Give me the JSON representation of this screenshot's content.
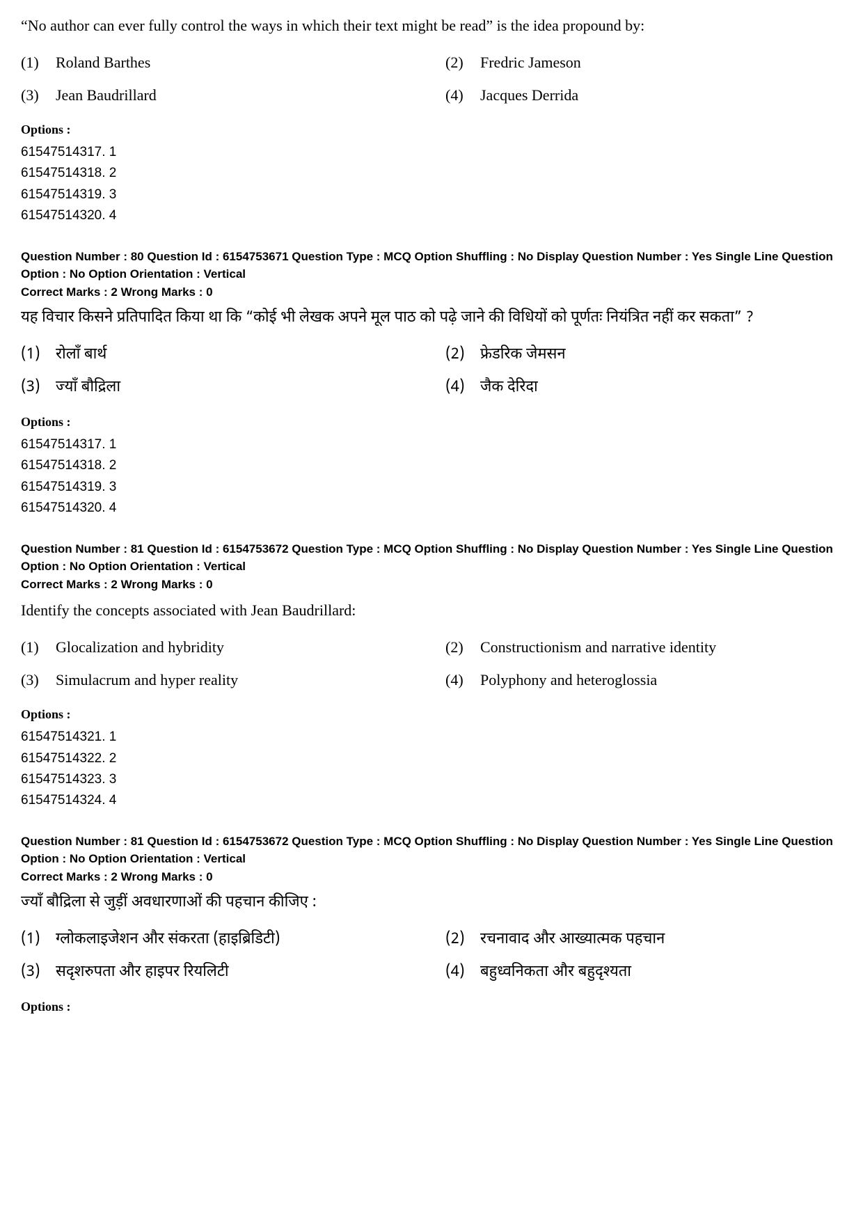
{
  "q79_en": {
    "text": "“No author can ever fully control the ways in which their text might be read” is the idea propound by:",
    "choices": [
      {
        "n": "(1)",
        "t": "Roland Barthes"
      },
      {
        "n": "(2)",
        "t": "Fredric Jameson"
      },
      {
        "n": "(3)",
        "t": "Jean Baudrillard"
      },
      {
        "n": "(4)",
        "t": "Jacques Derrida"
      }
    ],
    "options_label": "Options :",
    "options": [
      "61547514317. 1",
      "61547514318. 2",
      "61547514319. 3",
      "61547514320. 4"
    ]
  },
  "q80_meta": {
    "line1": "Question Number : 80  Question Id : 6154753671  Question Type : MCQ  Option Shuffling : No  Display Question Number : Yes  Single Line Question Option : No  Option Orientation : Vertical",
    "marks": "Correct Marks : 2  Wrong Marks : 0"
  },
  "q80_hi": {
    "text": "यह विचार किसने प्रतिपादित किया था कि “कोई भी लेखक अपने मूल पाठ को पढ़े जाने की विधियों को पूर्णतः नियंत्रित नहीं कर सकता” ?",
    "choices": [
      {
        "n": "(1)",
        "t": "रोलाँ बार्थ"
      },
      {
        "n": "(2)",
        "t": "फ्रेडरिक जेमसन"
      },
      {
        "n": "(3)",
        "t": "ज्याँ बौद्रिला"
      },
      {
        "n": "(4)",
        "t": "जैक देरिदा"
      }
    ],
    "options_label": "Options :",
    "options": [
      "61547514317. 1",
      "61547514318. 2",
      "61547514319. 3",
      "61547514320. 4"
    ]
  },
  "q81_meta": {
    "line1": "Question Number : 81  Question Id : 6154753672  Question Type : MCQ  Option Shuffling : No  Display Question Number : Yes  Single Line Question Option : No  Option Orientation : Vertical",
    "marks": "Correct Marks : 2  Wrong Marks : 0"
  },
  "q81_en": {
    "text": "Identify the concepts associated with Jean Baudrillard:",
    "choices": [
      {
        "n": "(1)",
        "t": "Glocalization and hybridity"
      },
      {
        "n": "(2)",
        "t": "Constructionism and narrative identity"
      },
      {
        "n": "(3)",
        "t": "Simulacrum and hyper reality"
      },
      {
        "n": "(4)",
        "t": "Polyphony and heteroglossia"
      }
    ],
    "options_label": "Options :",
    "options": [
      "61547514321. 1",
      "61547514322. 2",
      "61547514323. 3",
      "61547514324. 4"
    ]
  },
  "q81b_meta": {
    "line1": "Question Number : 81  Question Id : 6154753672  Question Type : MCQ  Option Shuffling : No  Display Question Number : Yes  Single Line Question Option : No  Option Orientation : Vertical",
    "marks": "Correct Marks : 2  Wrong Marks : 0"
  },
  "q81_hi": {
    "text": "ज्याँ बौद्रिला से जुड़ीं अवधारणाओं की पहचान कीजिए :",
    "choices": [
      {
        "n": "(1)",
        "t": "ग्लोकलाइजेशन और संकरता (हाइब्रिडिटी)"
      },
      {
        "n": "(2)",
        "t": "रचनावाद और आख्यात्मक पहचान"
      },
      {
        "n": "(3)",
        "t": "सदृशरुपता और हाइपर रियलिटी"
      },
      {
        "n": "(4)",
        "t": "बहुध्वनिकता और बहुदृश्यता"
      }
    ],
    "options_label": "Options :"
  }
}
